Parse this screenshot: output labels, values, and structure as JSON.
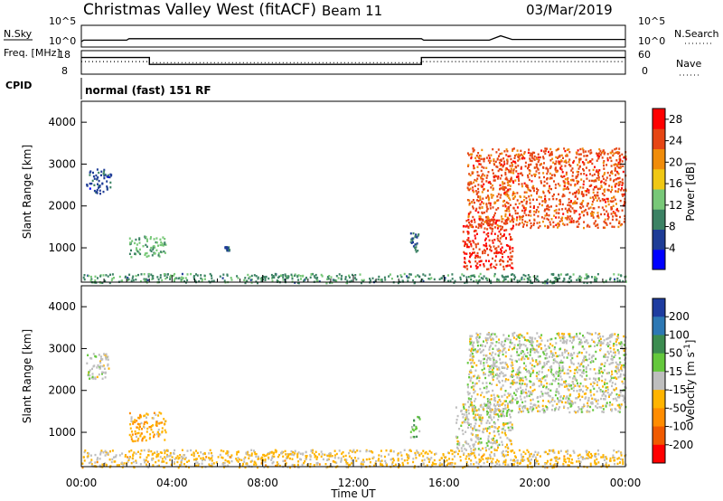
{
  "header": {
    "station": "Christmas Valley West (fitACF)",
    "beam": "Beam 11",
    "date": "03/Mar/2019"
  },
  "colors": {
    "axis": "#000000",
    "power_scale": [
      "#0000ff",
      "#1e3c96",
      "#3c8264",
      "#78c878",
      "#f0c814",
      "#f08c0a",
      "#e64614",
      "#ff0000"
    ],
    "velocity_scale": [
      "#1e3ca0",
      "#2d78b4",
      "#3c8c50",
      "#64c83c",
      "#bebebe",
      "#ffb400",
      "#ff8c00",
      "#f05a00",
      "#ff0000"
    ],
    "ground_scatter": "#bebebe"
  },
  "chart_data": [
    {
      "type": "line",
      "name": "noise-panel",
      "left_label": "N.Sky",
      "right_label": "N.Search",
      "left_ticks": [
        "10^5",
        "10^0"
      ],
      "right_ticks": [
        "10^5",
        "10^0"
      ],
      "series": [
        {
          "name": "N.Sky",
          "x": [
            0,
            0.1,
            2,
            2.1,
            15,
            15.1,
            18,
            18.5,
            19,
            24
          ],
          "y": [
            1.0,
            1.4,
            1.4,
            1.8,
            1.8,
            1.4,
            1.4,
            2.6,
            1.6,
            1.6
          ]
        }
      ]
    },
    {
      "type": "line",
      "name": "frequency-panel",
      "left_label": "Freq. [MHz]",
      "right_label": "Nave",
      "left_ticks": [
        18,
        8
      ],
      "right_ticks": [
        60,
        0
      ],
      "ylim": [
        8,
        18
      ],
      "y2lim": [
        0,
        60
      ],
      "series": [
        {
          "name": "Freq.",
          "x": [
            0,
            3,
            3,
            15,
            15,
            24
          ],
          "y": [
            16.0,
            16.0,
            11.8,
            11.8,
            16.0,
            16.0
          ]
        },
        {
          "name": "Nave",
          "x": [
            0,
            3,
            3,
            15,
            15,
            24
          ],
          "y": [
            33,
            33,
            29,
            29,
            33,
            33
          ]
        }
      ]
    },
    {
      "type": "text",
      "name": "cpid-panel",
      "label": "CPID",
      "value": "normal (fast) 151 RF"
    },
    {
      "type": "heatmap",
      "name": "power",
      "ylabel": "Slant Range [km]",
      "xlim": [
        0,
        24
      ],
      "ylim": [
        180,
        4500
      ],
      "y_ticks": [
        1000,
        2000,
        3000,
        4000
      ],
      "colorbar_label": "Power [dB]",
      "colorbar_ticks": [
        4,
        8,
        12,
        16,
        20,
        24,
        28
      ],
      "clim": [
        0,
        30
      ],
      "regions": [
        {
          "x": [
            0.2,
            1.3
          ],
          "y": [
            2300,
            2900
          ],
          "value": 6
        },
        {
          "x": [
            2.1,
            3.7
          ],
          "y": [
            800,
            1300
          ],
          "value": 12
        },
        {
          "x": [
            6.3,
            6.5
          ],
          "y": [
            950,
            1050
          ],
          "value": 6
        },
        {
          "x": [
            14.5,
            14.9
          ],
          "y": [
            900,
            1400
          ],
          "value": 8
        },
        {
          "x": [
            16.8,
            19.0
          ],
          "y": [
            500,
            1700
          ],
          "value": 26
        },
        {
          "x": [
            17.0,
            24.0
          ],
          "y": [
            1500,
            3400
          ],
          "value": 24
        },
        {
          "x": [
            0.0,
            24.0
          ],
          "y": [
            180,
            400
          ],
          "value": 10
        }
      ]
    },
    {
      "type": "heatmap",
      "name": "velocity",
      "ylabel": "Slant Range [km]",
      "xlabel": "Time UT",
      "xlim": [
        0,
        24
      ],
      "ylim": [
        180,
        4500
      ],
      "y_ticks": [
        1000,
        2000,
        3000,
        4000
      ],
      "x_ticks": [
        "00:00",
        "04:00",
        "08:00",
        "12:00",
        "16:00",
        "20:00",
        "00:00"
      ],
      "colorbar_label": "Velocity [m s^-1]",
      "colorbar_ticks": [
        200,
        100,
        50,
        15,
        -15,
        -50,
        -100,
        -200
      ],
      "clim": [
        -250,
        250
      ],
      "regions": [
        {
          "x": [
            0.2,
            1.2
          ],
          "y": [
            2300,
            2900
          ],
          "value": 0
        },
        {
          "x": [
            2.1,
            3.7
          ],
          "y": [
            800,
            1500
          ],
          "value": -60
        },
        {
          "x": [
            14.5,
            14.9
          ],
          "y": [
            900,
            1400
          ],
          "value": 60
        },
        {
          "x": [
            16.5,
            19.0
          ],
          "y": [
            600,
            1700
          ],
          "value": 0
        },
        {
          "x": [
            17.0,
            24.0
          ],
          "y": [
            1500,
            3400
          ],
          "value": 0
        },
        {
          "x": [
            0.0,
            24.0
          ],
          "y": [
            180,
            600
          ],
          "value": -40
        }
      ]
    }
  ]
}
